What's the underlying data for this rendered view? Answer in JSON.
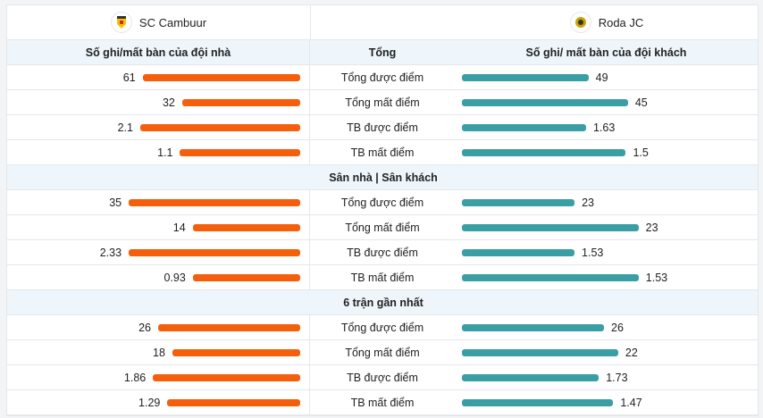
{
  "header": {
    "home_team": "SC Cambuur",
    "away_team": "Roda JC"
  },
  "columns": {
    "home": "Số ghi/mất bàn của đội nhà",
    "middle": "Tổng",
    "away": "Số ghi/ mất bàn của đội khách"
  },
  "colors": {
    "home_bar": "#f55e0a",
    "away_bar": "#3a9ea5"
  },
  "sections": [
    {
      "title": "",
      "rows": [
        {
          "label": "Tổng được điểm",
          "home": "61",
          "away": "49"
        },
        {
          "label": "Tổng mất điểm",
          "home": "32",
          "away": "45"
        },
        {
          "label": "TB được điểm",
          "home": "2.1",
          "away": "1.63"
        },
        {
          "label": "TB mất điểm",
          "home": "1.1",
          "away": "1.5"
        }
      ]
    },
    {
      "title": "Sân nhà | Sân khách",
      "rows": [
        {
          "label": "Tổng được điểm",
          "home": "35",
          "away": "23"
        },
        {
          "label": "Tổng mất điểm",
          "home": "14",
          "away": "23"
        },
        {
          "label": "TB được điểm",
          "home": "2.33",
          "away": "1.53"
        },
        {
          "label": "TB mất điểm",
          "home": "0.93",
          "away": "1.53"
        }
      ]
    },
    {
      "title": "6 trận gần nhất",
      "rows": [
        {
          "label": "Tổng được điểm",
          "home": "26",
          "away": "26"
        },
        {
          "label": "Tổng mất điểm",
          "home": "18",
          "away": "22"
        },
        {
          "label": "TB được điểm",
          "home": "1.86",
          "away": "1.73"
        },
        {
          "label": "TB mất điểm",
          "home": "1.29",
          "away": "1.47"
        }
      ]
    }
  ]
}
